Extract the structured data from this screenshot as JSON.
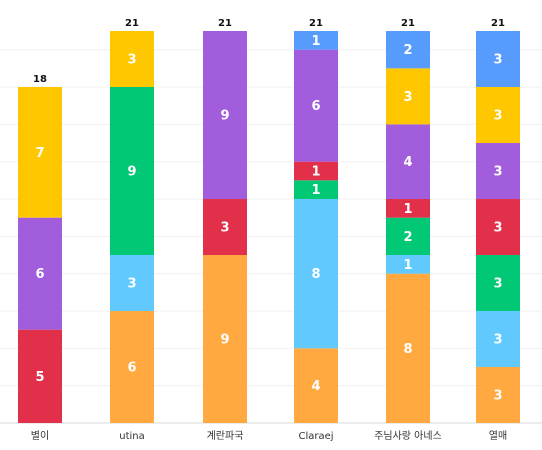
{
  "chart_data": {
    "type": "bar",
    "stacked": true,
    "categories": [
      "별이",
      "utina",
      "계란파국",
      "Claraej",
      "주님사랑 아네스",
      "열매"
    ],
    "totals": [
      18,
      21,
      21,
      21,
      21,
      21
    ],
    "series": [
      {
        "color": "#FFA940",
        "values": [
          0,
          6,
          9,
          4,
          8,
          3
        ]
      },
      {
        "color": "#62C9FF",
        "values": [
          0,
          3,
          0,
          8,
          1,
          3
        ]
      },
      {
        "color": "#00C875",
        "values": [
          0,
          9,
          0,
          1,
          2,
          3
        ]
      },
      {
        "color": "#E2304A",
        "values": [
          5,
          0,
          3,
          1,
          1,
          3
        ]
      },
      {
        "color": "#A25DDC",
        "values": [
          6,
          0,
          9,
          6,
          4,
          3
        ]
      },
      {
        "color": "#FFC700",
        "values": [
          7,
          3,
          0,
          0,
          3,
          3
        ]
      },
      {
        "color": "#579BFC",
        "values": [
          0,
          0,
          0,
          1,
          2,
          3
        ]
      }
    ],
    "ylim": [
      0,
      21
    ],
    "grid": true,
    "legend": "none"
  }
}
